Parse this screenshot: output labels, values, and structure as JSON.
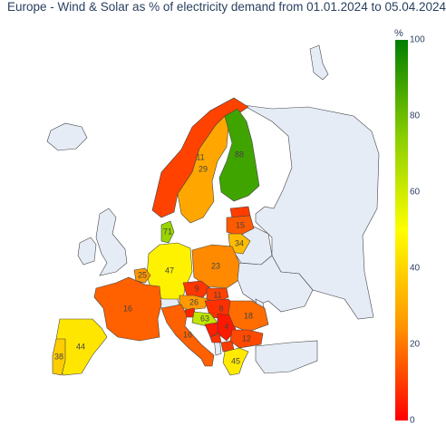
{
  "title": "Europe - Wind & Solar as % of electricity demand from 01.01.2024 to 05.04.2024",
  "colorbar": {
    "title": "%",
    "range": [
      0,
      100
    ],
    "ticks": [
      "0",
      "20",
      "40",
      "60",
      "80",
      "100"
    ],
    "colors": [
      "#ff0000",
      "#ff9600",
      "#ffff00",
      "#86cd00",
      "#007e00"
    ]
  },
  "colors": {
    "no_data": "#e5ecf6",
    "border": "#444444"
  },
  "chart_data": {
    "type": "choropleth",
    "title": "Europe - Wind & Solar as % of electricity demand from 01.01.2024 to 05.04.2024",
    "unit": "%",
    "range": [
      0,
      100
    ],
    "regions": [
      {
        "id": "NO",
        "value": 11,
        "label": "11"
      },
      {
        "id": "SE",
        "value": 29,
        "label": "29"
      },
      {
        "id": "FI",
        "value": 88,
        "label": "88"
      },
      {
        "id": "DK",
        "value": 71,
        "label": "71"
      },
      {
        "id": "LV",
        "value": 15,
        "label": "15"
      },
      {
        "id": "LT",
        "value": 34,
        "label": "34"
      },
      {
        "id": "DE",
        "value": 47,
        "label": "47"
      },
      {
        "id": "PL",
        "value": 23,
        "label": "23"
      },
      {
        "id": "NL",
        "value": 25,
        "label": "25"
      },
      {
        "id": "FR",
        "value": 16,
        "label": "16"
      },
      {
        "id": "CZ",
        "value": 9,
        "label": "9"
      },
      {
        "id": "AT",
        "value": 26,
        "label": "26"
      },
      {
        "id": "SK",
        "value": 11,
        "label": "11"
      },
      {
        "id": "HU",
        "value": 8,
        "label": "8"
      },
      {
        "id": "RO",
        "value": 18,
        "label": "18"
      },
      {
        "id": "IT",
        "value": 16,
        "label": "16"
      },
      {
        "id": "HR",
        "value": 63,
        "label": "63"
      },
      {
        "id": "RS",
        "value": 4,
        "label": "4"
      },
      {
        "id": "BG",
        "value": 12,
        "label": "12"
      },
      {
        "id": "GR",
        "value": 45,
        "label": "45"
      },
      {
        "id": "ES",
        "value": 44,
        "label": "44"
      },
      {
        "id": "PT",
        "value": 38,
        "label": "38"
      },
      {
        "id": "EE",
        "value": 10
      },
      {
        "id": "BE",
        "value": 18
      },
      {
        "id": "SI",
        "value": 6
      },
      {
        "id": "BA",
        "value": 5
      },
      {
        "id": "ME",
        "value": 8
      },
      {
        "id": "MK",
        "value": 10
      }
    ]
  }
}
